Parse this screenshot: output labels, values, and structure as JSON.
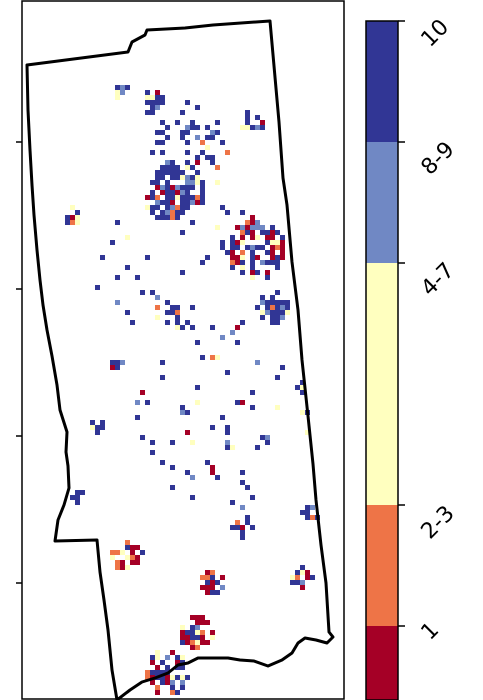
{
  "map": {
    "boundary": "county-outline",
    "cell_classes": [
      "1",
      "2-3",
      "4-7",
      "8-9",
      "10"
    ]
  },
  "legend": {
    "title": "",
    "classes": [
      {
        "label": "10",
        "color": "#313695"
      },
      {
        "label": "8-9",
        "color": "#7088c4"
      },
      {
        "label": "4-7",
        "color": "#ffffbf"
      },
      {
        "label": "2-3",
        "color": "#ee7447"
      },
      {
        "label": "1",
        "color": "#a50026"
      }
    ]
  },
  "colors": {
    "outline": "#000000",
    "background": "#ffffff"
  }
}
